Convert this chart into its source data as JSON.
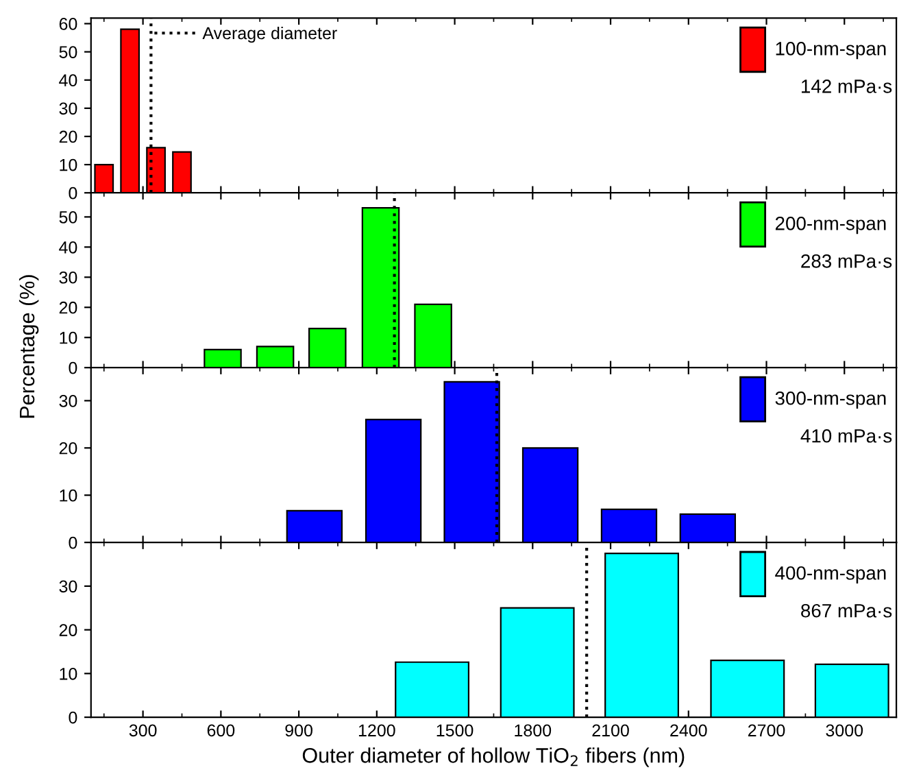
{
  "chart_data": [
    {
      "type": "bar",
      "x": [
        150,
        250,
        350,
        450
      ],
      "series": [
        {
          "name": "100-nm-span",
          "color": "#ff0000",
          "values": [
            10,
            58,
            16,
            14.5
          ]
        }
      ],
      "xlim": [
        100,
        3200
      ],
      "xticks": [
        300,
        600,
        900,
        1200,
        1500,
        1800,
        2100,
        2400,
        2700,
        3000
      ],
      "ylim": [
        0,
        62
      ],
      "yticks": [
        0,
        10,
        20,
        30,
        40,
        50,
        60
      ],
      "ref_lines": [
        {
          "axis": "x",
          "value": 331,
          "label": "Average diameter",
          "line_style": "dotted"
        }
      ],
      "annotations": [
        "142 mPa·s"
      ],
      "legend": "top right",
      "tick_labels": "y",
      "grid": false
    },
    {
      "type": "bar",
      "ylabel": "Percentage (%)",
      "x": [
        607,
        809,
        1010,
        1215,
        1417
      ],
      "series": [
        {
          "name": "200-nm-span",
          "color": "#00ff00",
          "values": [
            6,
            7,
            13,
            53,
            21
          ]
        }
      ],
      "xlim": [
        100,
        3200
      ],
      "xticks": [
        300,
        600,
        900,
        1200,
        1500,
        1800,
        2100,
        2400,
        2700,
        3000
      ],
      "ylim": [
        0,
        58
      ],
      "yticks": [
        0,
        10,
        20,
        30,
        40,
        50
      ],
      "ref_lines": [
        {
          "axis": "x",
          "value": 1268,
          "line_style": "dotted"
        }
      ],
      "annotations": [
        "283 mPa·s"
      ],
      "legend": "top right",
      "tick_labels": "y",
      "grid": false
    },
    {
      "type": "bar",
      "x": [
        960,
        1264,
        1566,
        1868,
        2171,
        2474
      ],
      "series": [
        {
          "name": "300-nm-span",
          "color": "#0000ff",
          "values": [
            6.7,
            26,
            34,
            20,
            7,
            6
          ]
        }
      ],
      "xlim": [
        100,
        3200
      ],
      "xticks": [
        300,
        600,
        900,
        1200,
        1500,
        1800,
        2100,
        2400,
        2700,
        3000
      ],
      "ylim": [
        0,
        37
      ],
      "yticks": [
        0,
        10,
        20,
        30
      ],
      "ref_lines": [
        {
          "axis": "x",
          "value": 1662,
          "line_style": "dotted"
        }
      ],
      "annotations": [
        "410 mPa·s"
      ],
      "legend": "top right",
      "tick_labels": "y",
      "grid": false
    },
    {
      "type": "bar",
      "xlabel": "Outer diameter of hollow TiO$_{2}$ fibers (nm)",
      "x": [
        1413,
        1818,
        2220,
        2627,
        3029
      ],
      "series": [
        {
          "name": "400-nm-span",
          "color": "#00ffff",
          "values": [
            12.6,
            25,
            37.5,
            13,
            12.1
          ]
        }
      ],
      "xlim": [
        100,
        3200
      ],
      "xticks": [
        300,
        600,
        900,
        1200,
        1500,
        1800,
        2100,
        2400,
        2700,
        3000
      ],
      "ylim": [
        0,
        40
      ],
      "yticks": [
        0,
        10,
        20,
        30
      ],
      "ref_lines": [
        {
          "axis": "x",
          "value": 2008,
          "line_style": "dotted"
        }
      ],
      "annotations": [
        "867 mPa·s"
      ],
      "legend": "top right",
      "grid": false
    }
  ]
}
